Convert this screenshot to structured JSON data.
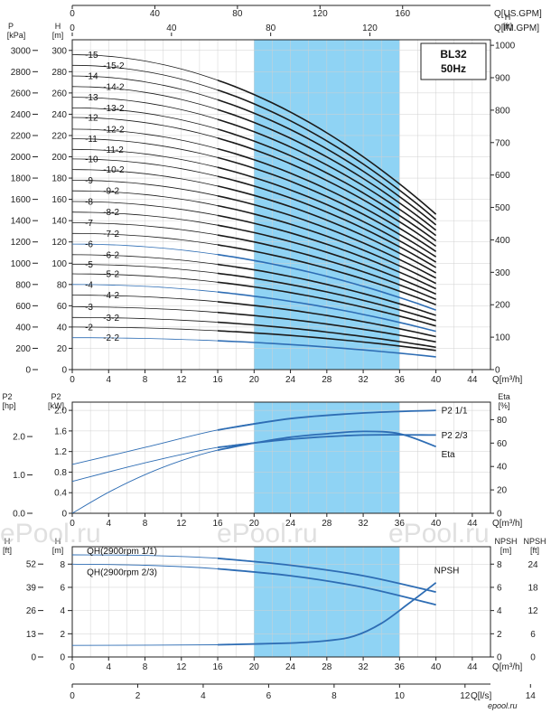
{
  "colors": {
    "band": "#8fd3f4",
    "curve": "#1a1a1a",
    "blue": "#2e6db4",
    "grid": "#d0d0d0"
  },
  "model_box": {
    "line1": "BL32",
    "line2": "50Hz"
  },
  "watermark": "ePool.ru",
  "logo": "epool.ru",
  "chart_data": [
    {
      "type": "line",
      "panel": "QH curves",
      "x_unit": "Q[m³/h]",
      "x_ticks": [
        0,
        4,
        8,
        12,
        16,
        20,
        24,
        28,
        32,
        36,
        40,
        44
      ],
      "xlim": [
        0,
        46
      ],
      "ylim_m": [
        0,
        310
      ],
      "left_axis_p": {
        "label": "P",
        "unit": "[kPa]",
        "ticks": [
          0,
          200,
          400,
          600,
          800,
          1000,
          1200,
          1400,
          1600,
          1800,
          2000,
          2200,
          2400,
          2600,
          2800,
          3000
        ]
      },
      "left_axis_h": {
        "label": "H",
        "unit": "[m]",
        "ticks": [
          0,
          20,
          40,
          60,
          80,
          100,
          120,
          140,
          160,
          180,
          200,
          220,
          240,
          260,
          280,
          300
        ]
      },
      "right_axis_h_ft": {
        "label": "H",
        "unit": "[ft]",
        "ticks": [
          0,
          100,
          200,
          300,
          400,
          500,
          600,
          700,
          800,
          900,
          1000
        ]
      },
      "top_axis_usgpm": {
        "label": "Q[US.GPM]",
        "ticks": [
          0,
          40,
          80,
          120,
          160
        ]
      },
      "top_axis_imgpm": {
        "label": "Q[IM.GPM]",
        "ticks": [
          0,
          40,
          80,
          120
        ]
      },
      "recommended_range": [
        20,
        36
      ],
      "series_labels": [
        "-15",
        "-15-2",
        "-14",
        "-14-2",
        "-13",
        "-13-2",
        "-12",
        "-12-2",
        "-11",
        "-11-2",
        "-10",
        "-10-2",
        "-9",
        "-9-2",
        "-8",
        "-8-2",
        "-7",
        "-7-2",
        "-6",
        "-6-2",
        "-5",
        "-5-2",
        "-4",
        "-4-2",
        "-3",
        "-3-2",
        "-2",
        "-2-2"
      ],
      "shutoff_heads_m": [
        296,
        286,
        276,
        266,
        256,
        246,
        237,
        226,
        217,
        207,
        198,
        188,
        178,
        168,
        158,
        148,
        138,
        128,
        118,
        108,
        99,
        90,
        80,
        70,
        59,
        49,
        40,
        30
      ],
      "heads_at_40_m": [
        146,
        141,
        136,
        131,
        126,
        121,
        116,
        111,
        106,
        101,
        96,
        91,
        86,
        81,
        76,
        71,
        66,
        61,
        56,
        51,
        46,
        41,
        36,
        31,
        26,
        21,
        18,
        12
      ]
    },
    {
      "type": "line",
      "panel": "Power and efficiency",
      "x_unit": "Q[m³/h]",
      "x_ticks": [
        0,
        4,
        8,
        12,
        16,
        20,
        24,
        28,
        32,
        36,
        40,
        44
      ],
      "left_axis_hp": {
        "label": "P2",
        "unit": "[hp]",
        "ticks": [
          "0.0",
          "1.0",
          "2.0"
        ]
      },
      "left_axis_kw": {
        "label": "P2",
        "unit": "[kW]",
        "ticks": [
          "0",
          "0.4",
          "0.8",
          "1.2",
          "1.6",
          "2.0"
        ]
      },
      "right_axis_eta": {
        "label": "Eta",
        "unit": "[%]",
        "ticks": [
          0,
          20,
          40,
          60,
          80
        ]
      },
      "series": [
        {
          "name": "P2 1/1",
          "x": [
            0,
            8,
            16,
            24,
            32,
            40
          ],
          "y_kw": [
            0.95,
            1.28,
            1.62,
            1.84,
            1.95,
            2.0
          ]
        },
        {
          "name": "P2 2/3",
          "x": [
            0,
            8,
            16,
            24,
            32,
            40
          ],
          "y_kw": [
            0.62,
            0.98,
            1.28,
            1.44,
            1.52,
            1.52
          ]
        },
        {
          "name": "Eta",
          "x": [
            0,
            4,
            8,
            12,
            16,
            20,
            24,
            28,
            32,
            36,
            40
          ],
          "y_pct": [
            0,
            18,
            33,
            45,
            54,
            60,
            65,
            68,
            70,
            68,
            57
          ]
        }
      ]
    },
    {
      "type": "line",
      "panel": "QH per stage and NPSH",
      "x_unit": "Q[m³/h]",
      "x_ticks": [
        0,
        4,
        8,
        12,
        16,
        20,
        24,
        28,
        32,
        36,
        40,
        44
      ],
      "left_axis_ft": {
        "label": "H",
        "unit": "[ft]",
        "ticks": [
          0,
          13,
          26,
          39,
          52
        ]
      },
      "left_axis_m": {
        "label": "H",
        "unit": "[m]",
        "ticks": [
          0,
          2,
          4,
          6,
          8
        ]
      },
      "right_axis_npsh_m": {
        "label": "NPSH",
        "unit": "[m]",
        "ticks": [
          0,
          2,
          4,
          6,
          8
        ]
      },
      "right_axis_npsh_ft": {
        "label": "NPSH",
        "unit": "[ft]",
        "ticks": [
          0,
          6,
          12,
          18,
          24
        ]
      },
      "series": [
        {
          "name": "QH(2900rpm 1/1)",
          "x": [
            0,
            8,
            16,
            24,
            32,
            40
          ],
          "y_m": [
            8.8,
            8.75,
            8.5,
            7.9,
            7.0,
            5.6
          ]
        },
        {
          "name": "QH(2900rpm 2/3)",
          "x": [
            0,
            8,
            16,
            24,
            32,
            40
          ],
          "y_m": [
            8.0,
            7.9,
            7.6,
            7.0,
            6.0,
            4.5
          ]
        },
        {
          "name": "NPSH",
          "x": [
            0,
            16,
            24,
            28,
            31,
            34,
            37,
            40
          ],
          "y_m": [
            1.0,
            1.05,
            1.2,
            1.4,
            1.8,
            2.9,
            4.6,
            6.4
          ]
        }
      ]
    },
    {
      "type": "axis",
      "panel": "Flow in l/s",
      "unit": "Q[l/s]",
      "ticks": [
        0,
        2,
        4,
        6,
        8,
        10,
        12,
        14
      ]
    }
  ]
}
